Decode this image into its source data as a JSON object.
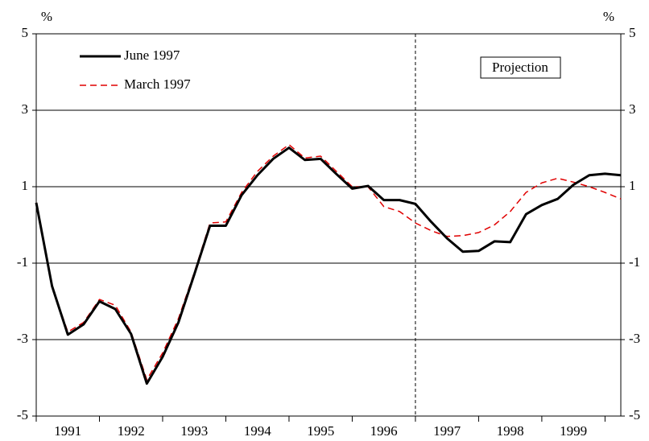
{
  "chart_data": {
    "type": "line",
    "y_unit_left": "%",
    "y_unit_right": "%",
    "annotation": "Projection",
    "projection_start": 1997,
    "x": [
      1991,
      1991.25,
      1991.5,
      1991.75,
      1992,
      1992.25,
      1992.5,
      1992.75,
      1993,
      1993.25,
      1993.5,
      1993.75,
      1994,
      1994.25,
      1994.5,
      1994.75,
      1995,
      1995.25,
      1995.5,
      1995.75,
      1996,
      1996.25,
      1996.5,
      1996.75,
      1997,
      1997.25,
      1997.5,
      1997.75,
      1998,
      1998.25,
      1998.5,
      1998.75,
      1999,
      1999.25,
      1999.5,
      1999.75,
      2000,
      2000.25
    ],
    "series": [
      {
        "name": "June 1997",
        "color": "#000000",
        "dash": false,
        "values": [
          0.58,
          -1.6,
          -2.87,
          -2.6,
          -2.0,
          -2.2,
          -2.85,
          -4.15,
          -3.45,
          -2.55,
          -1.3,
          -0.02,
          -0.02,
          0.78,
          1.3,
          1.73,
          2.02,
          1.7,
          1.73,
          1.33,
          0.95,
          1.02,
          0.65,
          0.65,
          0.55,
          0.08,
          -0.35,
          -0.7,
          -0.68,
          -0.43,
          -0.45,
          0.28,
          0.52,
          0.68,
          1.05,
          1.3,
          1.34,
          1.3
        ]
      },
      {
        "name": "March 1997",
        "color": "#e00000",
        "dash": true,
        "values": [
          0.58,
          -1.6,
          -2.8,
          -2.55,
          -1.95,
          -2.1,
          -2.8,
          -4.05,
          -3.35,
          -2.45,
          -1.25,
          0.05,
          0.08,
          0.85,
          1.4,
          1.8,
          2.1,
          1.75,
          1.8,
          1.4,
          1.0,
          1.0,
          0.48,
          0.35,
          0.05,
          -0.15,
          -0.3,
          -0.28,
          -0.2,
          0.0,
          0.35,
          0.85,
          1.1,
          1.22,
          1.12,
          1.0,
          0.85,
          0.68
        ]
      }
    ],
    "xlim": [
      1991,
      2000.25
    ],
    "xticks": [
      {
        "value": 1991.5,
        "label": "1991"
      },
      {
        "value": 1992.5,
        "label": "1992"
      },
      {
        "value": 1993.5,
        "label": "1993"
      },
      {
        "value": 1994.5,
        "label": "1994"
      },
      {
        "value": 1995.5,
        "label": "1995"
      },
      {
        "value": 1996.5,
        "label": "1996"
      },
      {
        "value": 1997.5,
        "label": "1997"
      },
      {
        "value": 1998.5,
        "label": "1998"
      },
      {
        "value": 1999.5,
        "label": "1999"
      }
    ],
    "ylim": [
      -5,
      5
    ],
    "yticks": [
      -5,
      -3,
      -1,
      1,
      3,
      5
    ],
    "grid": true,
    "legend": "upper left"
  }
}
